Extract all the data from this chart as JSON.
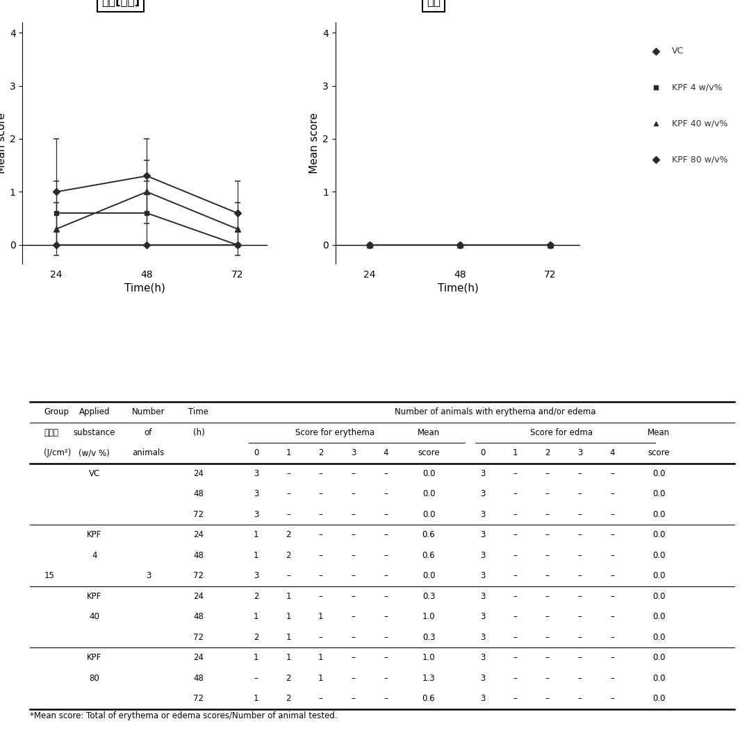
{
  "chart1_title": "홍반[가피]",
  "chart2_title": "부종",
  "xlabel": "Time(h)",
  "ylabel": "Mean score",
  "time_points": [
    24,
    48,
    72
  ],
  "erythema": {
    "VC": {
      "means": [
        0.0,
        0.0,
        0.0
      ],
      "err": [
        0.0,
        0.0,
        0.0
      ]
    },
    "KPF4": {
      "means": [
        0.6,
        0.6,
        0.0
      ],
      "err": [
        0.6,
        0.6,
        0.0
      ]
    },
    "KPF40": {
      "means": [
        0.3,
        1.0,
        0.3
      ],
      "err": [
        0.5,
        0.6,
        0.5
      ]
    },
    "KPF80": {
      "means": [
        1.0,
        1.3,
        0.6
      ],
      "err": [
        1.0,
        0.7,
        0.6
      ]
    }
  },
  "edema": {
    "VC": {
      "means": [
        0.0,
        0.0,
        0.0
      ],
      "err": [
        0.0,
        0.0,
        0.0
      ]
    },
    "KPF4": {
      "means": [
        0.0,
        0.0,
        0.0
      ],
      "err": [
        0.0,
        0.0,
        0.0
      ]
    },
    "KPF40": {
      "means": [
        0.0,
        0.0,
        0.0
      ],
      "err": [
        0.0,
        0.0,
        0.0
      ]
    },
    "KPF80": {
      "means": [
        0.0,
        0.0,
        0.0
      ],
      "err": [
        0.0,
        0.0,
        0.0
      ]
    }
  },
  "legend_labels": [
    "VC",
    "KPF 4 w/v%",
    "KPF 40 w/v%",
    "KPF 80 w/v%"
  ],
  "line_color": "#2a2a2a",
  "ylim": [
    -0.35,
    4.2
  ],
  "yticks": [
    0,
    1,
    2,
    3,
    4
  ],
  "footnote": "*Mean score: Total of erythema or edema scores/Number of animal tested."
}
